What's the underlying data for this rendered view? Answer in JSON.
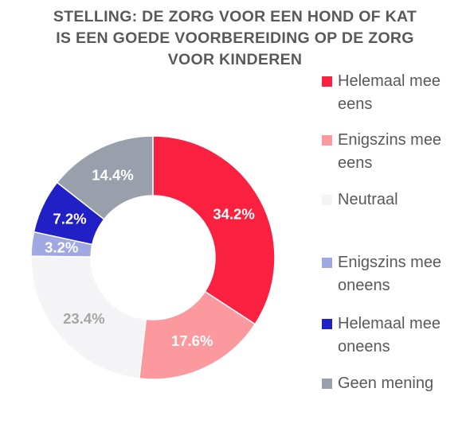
{
  "chart_data": {
    "type": "pie",
    "donut": true,
    "title": "STELLING: DE ZORG VOOR EEN HOND OF KAT IS EEN GOEDE VOORBEREIDING OP DE ZORG VOOR KINDEREN",
    "title_lines": [
      "STELLING: DE ZORG VOOR EEN HOND OF KAT",
      "IS EEN GOEDE VOORBEREIDING OP DE ZORG",
      "VOOR KINDEREN"
    ],
    "legend_position": "right",
    "slices": [
      {
        "name": "Helemaal mee eens",
        "value": 34.2,
        "label": "34.2%",
        "color": "#f9213f",
        "label_color": "#ffffff"
      },
      {
        "name": "Enigszins mee eens",
        "value": 17.6,
        "label": "17.6%",
        "color": "#fb999e",
        "label_color": "#ffffff"
      },
      {
        "name": "Neutraal",
        "value": 23.4,
        "label": "23.4%",
        "color": "#f4f4f6",
        "label_color": "#a6a6a6"
      },
      {
        "name": "Enigszins mee oneens",
        "value": 3.2,
        "label": "3.2%",
        "color": "#9fa8e1",
        "label_color": "#ffffff"
      },
      {
        "name": "Helemaal mee oneens",
        "value": 7.2,
        "label": "7.2%",
        "color": "#2020c6",
        "label_color": "#ffffff"
      },
      {
        "name": "Geen mening",
        "value": 14.4,
        "label": "14.4%",
        "color": "#99a0ac",
        "label_color": "#ffffff"
      }
    ]
  },
  "legend": {
    "items": [
      {
        "label": "Helemaal mee eens",
        "color": "#f9213f"
      },
      {
        "label": "Enigszins mee eens",
        "color": "#fb999e"
      },
      {
        "label": "Neutraal",
        "color": "#f4f4f6"
      },
      {
        "label": "Enigszins mee oneens",
        "color": "#9fa8e1"
      },
      {
        "label": "Helemaal mee oneens",
        "color": "#2020c6"
      },
      {
        "label": "Geen mening",
        "color": "#99a0ac"
      }
    ]
  }
}
